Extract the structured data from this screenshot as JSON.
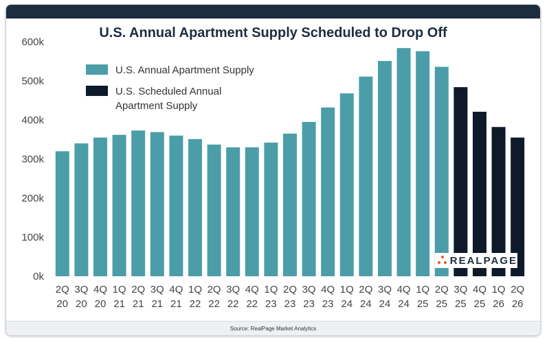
{
  "chart_data": {
    "type": "bar",
    "title": "U.S. Annual Apartment Supply Scheduled to Drop Off",
    "categories": [
      [
        "2Q",
        "20"
      ],
      [
        "3Q",
        "20"
      ],
      [
        "4Q",
        "20"
      ],
      [
        "1Q",
        "21"
      ],
      [
        "2Q",
        "21"
      ],
      [
        "3Q",
        "21"
      ],
      [
        "4Q",
        "21"
      ],
      [
        "1Q",
        "22"
      ],
      [
        "2Q",
        "22"
      ],
      [
        "3Q",
        "22"
      ],
      [
        "4Q",
        "22"
      ],
      [
        "1Q",
        "23"
      ],
      [
        "2Q",
        "23"
      ],
      [
        "3Q",
        "23"
      ],
      [
        "4Q",
        "23"
      ],
      [
        "1Q",
        "24"
      ],
      [
        "2Q",
        "24"
      ],
      [
        "3Q",
        "24"
      ],
      [
        "4Q",
        "24"
      ],
      [
        "1Q",
        "25"
      ],
      [
        "2Q",
        "25"
      ],
      [
        "3Q",
        "25"
      ],
      [
        "4Q",
        "25"
      ],
      [
        "1Q",
        "26"
      ],
      [
        "2Q",
        "26"
      ]
    ],
    "series": [
      {
        "name": "U.S. Annual Apartment Supply",
        "color": "#4b9ea7",
        "values": [
          320000,
          340000,
          355000,
          362000,
          373000,
          369000,
          360000,
          351000,
          337000,
          330000,
          330000,
          342000,
          365000,
          395000,
          432000,
          468000,
          511000,
          551000,
          584000,
          576000,
          536000,
          null,
          null,
          null,
          null
        ]
      },
      {
        "name": "U.S. Scheduled Annual Apartment Supply",
        "name_lines": [
          "U.S. Scheduled Annual",
          "Apartment Supply"
        ],
        "color": "#0e1a2a",
        "values": [
          null,
          null,
          null,
          null,
          null,
          null,
          null,
          null,
          null,
          null,
          null,
          null,
          null,
          null,
          null,
          null,
          null,
          null,
          null,
          null,
          null,
          484000,
          421000,
          382000,
          355000
        ]
      }
    ],
    "yticks": [
      "0k",
      "100k",
      "200k",
      "300k",
      "400k",
      "500k",
      "600k"
    ],
    "ylim": [
      0,
      600000
    ],
    "legend_position": "top-left",
    "grid": false
  },
  "source": "Source: RealPage Market Analytics",
  "logo_text": "REALPAGE",
  "colors": {
    "header": "#1d2c3f",
    "accent": "#e55a2b"
  }
}
